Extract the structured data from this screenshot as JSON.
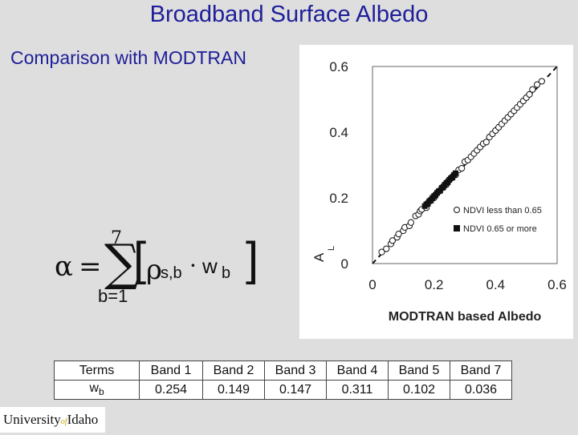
{
  "title": "Broadband Surface Albedo",
  "subtitle": "Comparison with MODTRAN",
  "formula": {
    "alpha": "α",
    "equals": "=",
    "sigma": "∑",
    "upper": "7",
    "lower": "b=1",
    "left_bracket": "[",
    "rho": "ρ",
    "rho_sub": "s,b",
    "dot": "·",
    "w": "w",
    "w_sub": "b",
    "right_bracket": "]"
  },
  "chart_data": {
    "type": "scatter",
    "xlabel": "MODTRAN based Albedo",
    "ylabel": "A",
    "ylabel_sub": "L",
    "xlim": [
      0,
      0.6
    ],
    "ylim": [
      0,
      0.6
    ],
    "xticks": [
      "0",
      "0.2",
      "0.4",
      "0.6"
    ],
    "yticks": [
      "0",
      "0.2",
      "0.4",
      "0.6"
    ],
    "legend_position": "center-right",
    "reference_line": {
      "style": "dashed",
      "from": [
        0,
        0
      ],
      "to": [
        0.6,
        0.6
      ]
    },
    "series": [
      {
        "name": "NDVI less than 0.65",
        "marker": "open-circle",
        "points": [
          [
            0.03,
            0.035
          ],
          [
            0.045,
            0.045
          ],
          [
            0.06,
            0.06
          ],
          [
            0.065,
            0.07
          ],
          [
            0.08,
            0.08
          ],
          [
            0.085,
            0.09
          ],
          [
            0.1,
            0.1
          ],
          [
            0.105,
            0.11
          ],
          [
            0.12,
            0.115
          ],
          [
            0.125,
            0.125
          ],
          [
            0.14,
            0.145
          ],
          [
            0.15,
            0.15
          ],
          [
            0.155,
            0.16
          ],
          [
            0.16,
            0.165
          ],
          [
            0.175,
            0.17
          ],
          [
            0.18,
            0.185
          ],
          [
            0.19,
            0.195
          ],
          [
            0.2,
            0.2
          ],
          [
            0.205,
            0.21
          ],
          [
            0.21,
            0.215
          ],
          [
            0.215,
            0.22
          ],
          [
            0.225,
            0.23
          ],
          [
            0.23,
            0.235
          ],
          [
            0.24,
            0.24
          ],
          [
            0.245,
            0.25
          ],
          [
            0.25,
            0.255
          ],
          [
            0.26,
            0.265
          ],
          [
            0.27,
            0.27
          ],
          [
            0.28,
            0.285
          ],
          [
            0.29,
            0.29
          ],
          [
            0.3,
            0.31
          ],
          [
            0.31,
            0.315
          ],
          [
            0.32,
            0.325
          ],
          [
            0.33,
            0.335
          ],
          [
            0.34,
            0.345
          ],
          [
            0.35,
            0.355
          ],
          [
            0.36,
            0.365
          ],
          [
            0.37,
            0.37
          ],
          [
            0.38,
            0.385
          ],
          [
            0.39,
            0.395
          ],
          [
            0.4,
            0.405
          ],
          [
            0.41,
            0.415
          ],
          [
            0.42,
            0.425
          ],
          [
            0.43,
            0.435
          ],
          [
            0.44,
            0.445
          ],
          [
            0.45,
            0.455
          ],
          [
            0.46,
            0.465
          ],
          [
            0.47,
            0.475
          ],
          [
            0.48,
            0.485
          ],
          [
            0.49,
            0.495
          ],
          [
            0.5,
            0.505
          ],
          [
            0.51,
            0.515
          ],
          [
            0.52,
            0.53
          ],
          [
            0.535,
            0.545
          ],
          [
            0.55,
            0.555
          ]
        ]
      },
      {
        "name": "NDVI 0.65 or more",
        "marker": "filled-square",
        "points": [
          [
            0.17,
            0.175
          ],
          [
            0.175,
            0.18
          ],
          [
            0.18,
            0.182
          ],
          [
            0.185,
            0.19
          ],
          [
            0.19,
            0.192
          ],
          [
            0.195,
            0.2
          ],
          [
            0.2,
            0.205
          ],
          [
            0.205,
            0.208
          ],
          [
            0.21,
            0.215
          ],
          [
            0.215,
            0.22
          ],
          [
            0.22,
            0.222
          ],
          [
            0.225,
            0.23
          ],
          [
            0.23,
            0.232
          ],
          [
            0.235,
            0.24
          ],
          [
            0.24,
            0.245
          ],
          [
            0.245,
            0.248
          ],
          [
            0.25,
            0.255
          ],
          [
            0.255,
            0.26
          ],
          [
            0.26,
            0.262
          ],
          [
            0.265,
            0.27
          ],
          [
            0.27,
            0.275
          ]
        ]
      }
    ]
  },
  "table": {
    "headers": [
      "Terms",
      "Band 1",
      "Band 2",
      "Band 3",
      "Band 4",
      "Band 5",
      "Band 7"
    ],
    "row_label": "w",
    "row_label_sub": "b",
    "values": [
      "0.254",
      "0.149",
      "0.147",
      "0.311",
      "0.102",
      "0.036"
    ]
  },
  "logo": {
    "part1": "University",
    "part2": "of",
    "part3": "Idaho"
  }
}
